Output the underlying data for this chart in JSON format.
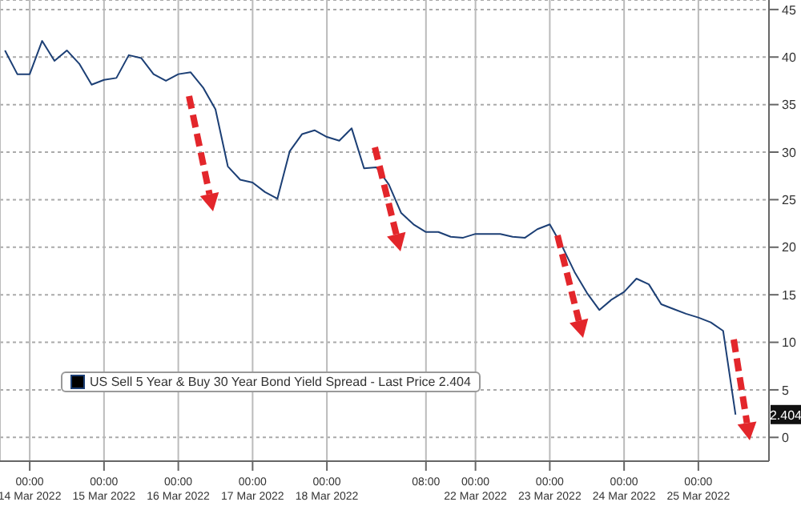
{
  "chart_data": {
    "type": "line",
    "legend": "bottom left",
    "grid": true,
    "ylim": [
      -2.5,
      46
    ],
    "yticks": [
      0,
      5,
      10,
      15,
      20,
      25,
      30,
      35,
      40,
      45
    ],
    "categories": [
      null,
      null,
      "00:00\n14 Mar 2022",
      null,
      null,
      null,
      null,
      null,
      "00:00\n15 Mar 2022",
      null,
      null,
      null,
      null,
      null,
      "00:00\n16 Mar 2022",
      null,
      null,
      null,
      null,
      null,
      "00:00\n17 Mar 2022",
      null,
      null,
      null,
      null,
      null,
      "00:00\n18 Mar 2022",
      null,
      null,
      null,
      null,
      null,
      null,
      null,
      "08:00",
      null,
      null,
      null,
      "00:00\n22 Mar 2022",
      null,
      null,
      null,
      null,
      null,
      "00:00\n23 Mar 2022",
      null,
      null,
      null,
      null,
      null,
      "00:00\n24 Mar 2022",
      null,
      null,
      null,
      null,
      null,
      "00:00\n25 Mar 2022",
      null,
      null,
      null
    ],
    "annotations": [
      "2.404"
    ],
    "series": [
      {
        "name": "US Sell 5 Year & Buy 30 Year Bond Yield Spread - Last Price 2.404",
        "color": "#1c3f75",
        "values": [
          40.7,
          38.2,
          38.2,
          41.7,
          39.6,
          40.7,
          39.3,
          37.1,
          37.6,
          37.8,
          40.2,
          39.9,
          38.2,
          37.5,
          38.2,
          38.4,
          36.8,
          34.5,
          28.5,
          27.1,
          26.8,
          25.8,
          25.1,
          30.1,
          31.9,
          32.3,
          31.6,
          31.2,
          32.5,
          28.3,
          28.4,
          26.6,
          23.6,
          22.4,
          21.6,
          21.6,
          21.1,
          21.0,
          21.4,
          21.4,
          21.4,
          21.1,
          21.0,
          21.9,
          22.4,
          20.1,
          17.4,
          15.2,
          13.4,
          14.5,
          15.3,
          16.7,
          16.1,
          14.0,
          13.5,
          13.0,
          12.6,
          12.1,
          11.2,
          2.4
        ]
      }
    ]
  }
}
